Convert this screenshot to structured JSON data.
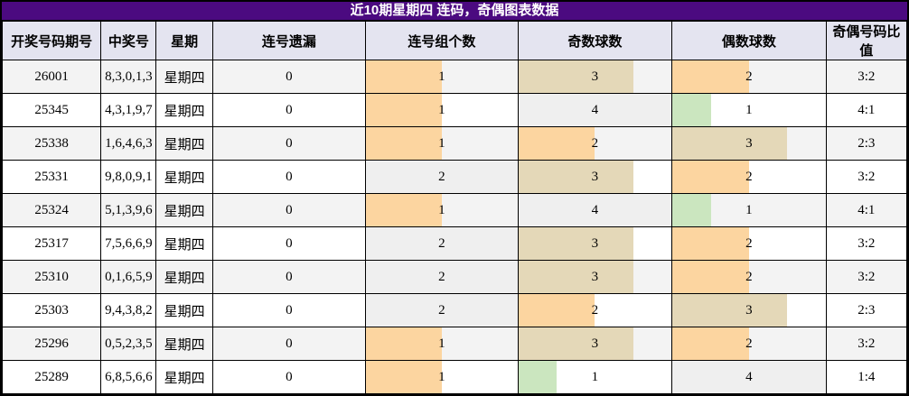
{
  "title": "近10期星期四 连码，奇偶图表数据",
  "colors": {
    "title_bg": "#4B0A80",
    "title_text": "#FFFFFF",
    "header_bg": "#E4E4F0",
    "row_shaded": "#F3F3F3",
    "row_plain": "#FFFFFF",
    "border": "#000000",
    "bar_green": "#CBE6BF",
    "bar_orange": "#FCD5A0",
    "bar_tan": "#E4D8B8",
    "bar_gray": "#EFEFEF"
  },
  "chart_data": {
    "type": "table",
    "title": "近10期星期四 连码，奇偶图表数据",
    "columns": [
      "开奖号码期号",
      "中奖号",
      "星期",
      "连号遗漏",
      "连号组个数",
      "奇数球数",
      "偶数球数",
      "奇偶号码比值"
    ],
    "bar_scale_note": "cell bars: width = value/max (连号组个数 max 2, 球数 max 4); 25%=green, 50%=orange, 75%=tan, 100%=gray",
    "rows": [
      {
        "period": "26001",
        "numbers": "8,3,0,1,3",
        "weekday": "星期四",
        "miss": "0",
        "groups": {
          "value": "1",
          "pct": 50,
          "color": "bar_orange"
        },
        "odd": {
          "value": "3",
          "pct": 75,
          "color": "bar_tan"
        },
        "even": {
          "value": "2",
          "pct": 50,
          "color": "bar_orange"
        },
        "ratio": "3:2"
      },
      {
        "period": "25345",
        "numbers": "4,3,1,9,7",
        "weekday": "星期四",
        "miss": "0",
        "groups": {
          "value": "1",
          "pct": 50,
          "color": "bar_orange"
        },
        "odd": {
          "value": "4",
          "pct": 100,
          "color": "bar_gray"
        },
        "even": {
          "value": "1",
          "pct": 25,
          "color": "bar_green"
        },
        "ratio": "4:1"
      },
      {
        "period": "25338",
        "numbers": "1,6,4,6,3",
        "weekday": "星期四",
        "miss": "0",
        "groups": {
          "value": "1",
          "pct": 50,
          "color": "bar_orange"
        },
        "odd": {
          "value": "2",
          "pct": 50,
          "color": "bar_orange"
        },
        "even": {
          "value": "3",
          "pct": 75,
          "color": "bar_tan"
        },
        "ratio": "2:3"
      },
      {
        "period": "25331",
        "numbers": "9,8,0,9,1",
        "weekday": "星期四",
        "miss": "0",
        "groups": {
          "value": "2",
          "pct": 100,
          "color": "bar_gray"
        },
        "odd": {
          "value": "3",
          "pct": 75,
          "color": "bar_tan"
        },
        "even": {
          "value": "2",
          "pct": 50,
          "color": "bar_orange"
        },
        "ratio": "3:2"
      },
      {
        "period": "25324",
        "numbers": "5,1,3,9,6",
        "weekday": "星期四",
        "miss": "0",
        "groups": {
          "value": "1",
          "pct": 50,
          "color": "bar_orange"
        },
        "odd": {
          "value": "4",
          "pct": 100,
          "color": "bar_gray"
        },
        "even": {
          "value": "1",
          "pct": 25,
          "color": "bar_green"
        },
        "ratio": "4:1"
      },
      {
        "period": "25317",
        "numbers": "7,5,6,6,9",
        "weekday": "星期四",
        "miss": "0",
        "groups": {
          "value": "2",
          "pct": 100,
          "color": "bar_gray"
        },
        "odd": {
          "value": "3",
          "pct": 75,
          "color": "bar_tan"
        },
        "even": {
          "value": "2",
          "pct": 50,
          "color": "bar_orange"
        },
        "ratio": "3:2"
      },
      {
        "period": "25310",
        "numbers": "0,1,6,5,9",
        "weekday": "星期四",
        "miss": "0",
        "groups": {
          "value": "2",
          "pct": 100,
          "color": "bar_gray"
        },
        "odd": {
          "value": "3",
          "pct": 75,
          "color": "bar_tan"
        },
        "even": {
          "value": "2",
          "pct": 50,
          "color": "bar_orange"
        },
        "ratio": "3:2"
      },
      {
        "period": "25303",
        "numbers": "9,4,3,8,2",
        "weekday": "星期四",
        "miss": "0",
        "groups": {
          "value": "2",
          "pct": 100,
          "color": "bar_gray"
        },
        "odd": {
          "value": "2",
          "pct": 50,
          "color": "bar_orange"
        },
        "even": {
          "value": "3",
          "pct": 75,
          "color": "bar_tan"
        },
        "ratio": "2:3"
      },
      {
        "period": "25296",
        "numbers": "0,5,2,3,5",
        "weekday": "星期四",
        "miss": "0",
        "groups": {
          "value": "1",
          "pct": 50,
          "color": "bar_orange"
        },
        "odd": {
          "value": "3",
          "pct": 75,
          "color": "bar_tan"
        },
        "even": {
          "value": "2",
          "pct": 50,
          "color": "bar_orange"
        },
        "ratio": "3:2"
      },
      {
        "period": "25289",
        "numbers": "6,8,5,6,6",
        "weekday": "星期四",
        "miss": "0",
        "groups": {
          "value": "1",
          "pct": 50,
          "color": "bar_orange"
        },
        "odd": {
          "value": "1",
          "pct": 25,
          "color": "bar_green"
        },
        "even": {
          "value": "4",
          "pct": 100,
          "color": "bar_gray"
        },
        "ratio": "1:4"
      }
    ]
  }
}
